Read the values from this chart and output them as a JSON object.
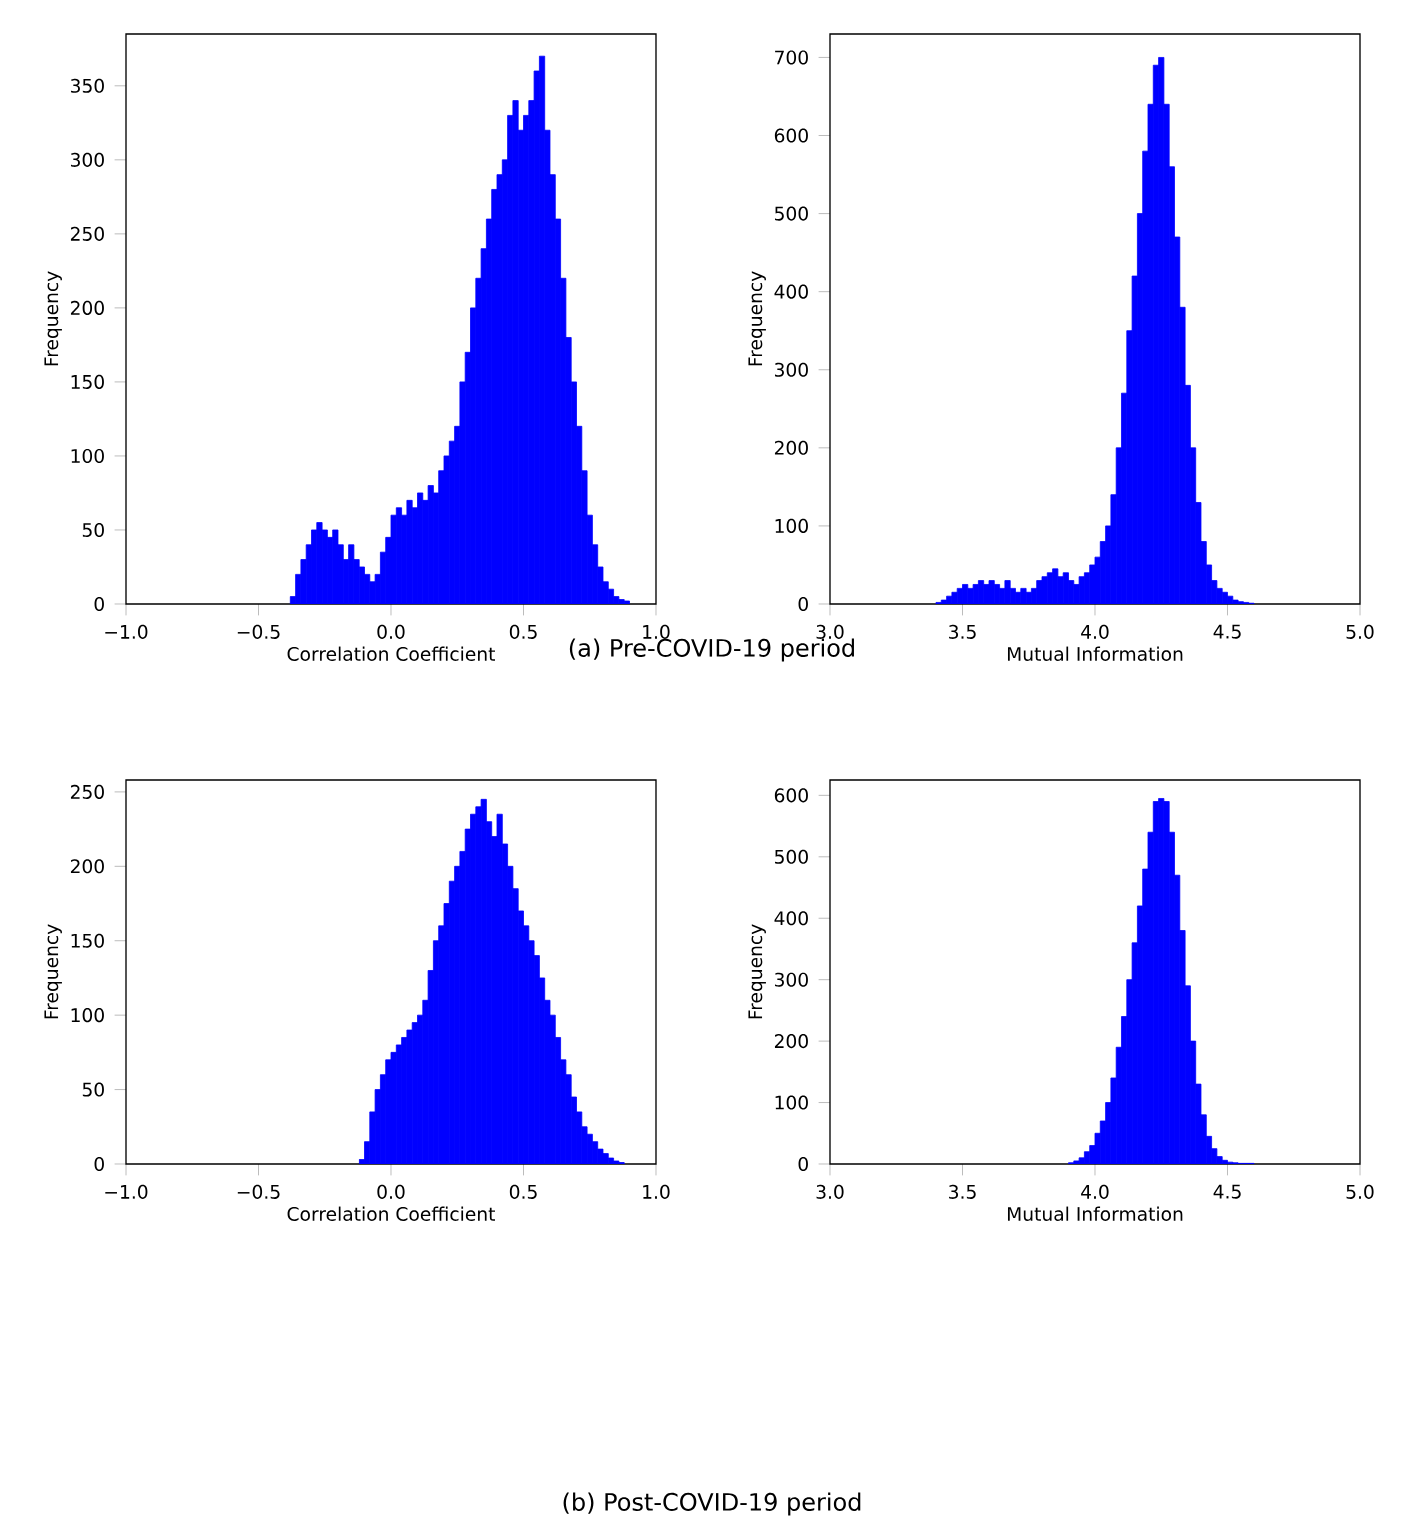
{
  "chart_data": [
    {
      "type": "histogram",
      "xlabel": "Correlation Coefficient",
      "ylabel": "Frequency",
      "color": "#0000ff",
      "annotations": [
        "(a) Pre-COVID-19 period"
      ],
      "bins": [
        -0.38,
        -0.36,
        -0.34,
        -0.32,
        -0.3,
        -0.28,
        -0.26,
        -0.24,
        -0.22,
        -0.2,
        -0.18,
        -0.16,
        -0.14,
        -0.12,
        -0.1,
        -0.08,
        -0.06,
        -0.04,
        -0.02,
        0.0,
        0.02,
        0.04,
        0.06,
        0.08,
        0.1,
        0.12,
        0.14,
        0.16,
        0.18,
        0.2,
        0.22,
        0.24,
        0.26,
        0.28,
        0.3,
        0.32,
        0.34,
        0.36,
        0.38,
        0.4,
        0.42,
        0.44,
        0.46,
        0.48,
        0.5,
        0.52,
        0.54,
        0.56,
        0.58,
        0.6,
        0.62,
        0.64,
        0.66,
        0.68,
        0.7,
        0.72,
        0.74,
        0.76,
        0.78,
        0.8,
        0.82,
        0.84,
        0.86,
        0.88,
        0.9
      ],
      "values": [
        5,
        20,
        30,
        40,
        50,
        55,
        50,
        45,
        50,
        40,
        30,
        40,
        30,
        25,
        20,
        15,
        20,
        35,
        45,
        60,
        65,
        60,
        70,
        65,
        75,
        70,
        80,
        75,
        90,
        100,
        110,
        120,
        150,
        170,
        200,
        220,
        240,
        260,
        280,
        290,
        300,
        330,
        340,
        320,
        330,
        340,
        360,
        370,
        320,
        290,
        260,
        220,
        180,
        150,
        120,
        90,
        60,
        40,
        25,
        15,
        10,
        5,
        3,
        2
      ],
      "xlim": [
        -1.0,
        1.0
      ],
      "ylim": [
        0,
        385
      ],
      "xticks": [
        {
          "value": -1.0,
          "label": "−1.0"
        },
        {
          "value": -0.5,
          "label": "−0.5"
        },
        {
          "value": 0.0,
          "label": "0.0"
        },
        {
          "value": 0.5,
          "label": "0.5"
        },
        {
          "value": 1.0,
          "label": "1.0"
        }
      ],
      "yticks": [
        0,
        50,
        100,
        150,
        200,
        250,
        300,
        350
      ]
    },
    {
      "type": "histogram",
      "xlabel": "Mutual Information",
      "ylabel": "Frequency",
      "color": "#0000ff",
      "bins": [
        3.4,
        3.42,
        3.44,
        3.46,
        3.48,
        3.5,
        3.52,
        3.54,
        3.56,
        3.58,
        3.6,
        3.62,
        3.64,
        3.66,
        3.68,
        3.7,
        3.72,
        3.74,
        3.76,
        3.78,
        3.8,
        3.82,
        3.84,
        3.86,
        3.88,
        3.9,
        3.92,
        3.94,
        3.96,
        3.98,
        4.0,
        4.02,
        4.04,
        4.06,
        4.08,
        4.1,
        4.12,
        4.14,
        4.16,
        4.18,
        4.2,
        4.22,
        4.24,
        4.26,
        4.28,
        4.3,
        4.32,
        4.34,
        4.36,
        4.38,
        4.4,
        4.42,
        4.44,
        4.46,
        4.48,
        4.5,
        4.52,
        4.54,
        4.56,
        4.58,
        4.6
      ],
      "values": [
        2,
        5,
        10,
        15,
        20,
        25,
        20,
        25,
        30,
        25,
        30,
        25,
        20,
        30,
        20,
        15,
        20,
        15,
        20,
        30,
        35,
        40,
        45,
        35,
        40,
        30,
        25,
        35,
        40,
        50,
        60,
        80,
        100,
        140,
        200,
        270,
        350,
        420,
        500,
        580,
        640,
        690,
        700,
        640,
        560,
        470,
        380,
        280,
        200,
        130,
        80,
        50,
        30,
        20,
        15,
        10,
        5,
        3,
        2,
        1
      ],
      "xlim": [
        3.0,
        5.0
      ],
      "ylim": [
        0,
        730
      ],
      "xticks": [
        {
          "value": 3.0,
          "label": "3.0"
        },
        {
          "value": 3.5,
          "label": "3.5"
        },
        {
          "value": 4.0,
          "label": "4.0"
        },
        {
          "value": 4.5,
          "label": "4.5"
        },
        {
          "value": 5.0,
          "label": "5.0"
        }
      ],
      "yticks": [
        0,
        100,
        200,
        300,
        400,
        500,
        600,
        700
      ]
    },
    {
      "type": "histogram",
      "xlabel": "Correlation Coefficient",
      "ylabel": "Frequency",
      "color": "#0000ff",
      "annotations": [
        "(b) Post-COVID-19 period"
      ],
      "bins": [
        -0.12,
        -0.1,
        -0.08,
        -0.06,
        -0.04,
        -0.02,
        0.0,
        0.02,
        0.04,
        0.06,
        0.08,
        0.1,
        0.12,
        0.14,
        0.16,
        0.18,
        0.2,
        0.22,
        0.24,
        0.26,
        0.28,
        0.3,
        0.32,
        0.34,
        0.36,
        0.38,
        0.4,
        0.42,
        0.44,
        0.46,
        0.48,
        0.5,
        0.52,
        0.54,
        0.56,
        0.58,
        0.6,
        0.62,
        0.64,
        0.66,
        0.68,
        0.7,
        0.72,
        0.74,
        0.76,
        0.78,
        0.8,
        0.82,
        0.84,
        0.86,
        0.88
      ],
      "values": [
        3,
        15,
        35,
        50,
        60,
        70,
        75,
        80,
        85,
        90,
        95,
        100,
        110,
        130,
        150,
        160,
        175,
        190,
        200,
        210,
        225,
        235,
        240,
        245,
        230,
        220,
        235,
        215,
        200,
        185,
        170,
        160,
        150,
        140,
        125,
        110,
        100,
        85,
        70,
        60,
        45,
        35,
        25,
        20,
        15,
        10,
        7,
        4,
        2,
        1
      ],
      "xlim": [
        -1.0,
        1.0
      ],
      "ylim": [
        0,
        258
      ],
      "xticks": [
        {
          "value": -1.0,
          "label": "−1.0"
        },
        {
          "value": -0.5,
          "label": "−0.5"
        },
        {
          "value": 0.0,
          "label": "0.0"
        },
        {
          "value": 0.5,
          "label": "0.5"
        },
        {
          "value": 1.0,
          "label": "1.0"
        }
      ],
      "yticks": [
        0,
        50,
        100,
        150,
        200,
        250
      ]
    },
    {
      "type": "histogram",
      "xlabel": "Mutual Information",
      "ylabel": "Frequency",
      "color": "#0000ff",
      "bins": [
        3.9,
        3.92,
        3.94,
        3.96,
        3.98,
        4.0,
        4.02,
        4.04,
        4.06,
        4.08,
        4.1,
        4.12,
        4.14,
        4.16,
        4.18,
        4.2,
        4.22,
        4.24,
        4.26,
        4.28,
        4.3,
        4.32,
        4.34,
        4.36,
        4.38,
        4.4,
        4.42,
        4.44,
        4.46,
        4.48,
        4.5,
        4.52,
        4.54,
        4.56,
        4.58,
        4.6
      ],
      "values": [
        2,
        5,
        10,
        20,
        30,
        50,
        70,
        100,
        140,
        190,
        240,
        300,
        360,
        420,
        480,
        540,
        590,
        595,
        590,
        540,
        470,
        380,
        290,
        200,
        130,
        80,
        45,
        25,
        12,
        6,
        3,
        2,
        1,
        1,
        1
      ],
      "xlim": [
        3.0,
        5.0
      ],
      "ylim": [
        0,
        625
      ],
      "xticks": [
        {
          "value": 3.0,
          "label": "3.0"
        },
        {
          "value": 3.5,
          "label": "3.5"
        },
        {
          "value": 4.0,
          "label": "4.0"
        },
        {
          "value": 4.5,
          "label": "4.5"
        },
        {
          "value": 5.0,
          "label": "5.0"
        }
      ],
      "yticks": [
        0,
        100,
        200,
        300,
        400,
        500,
        600
      ]
    }
  ]
}
